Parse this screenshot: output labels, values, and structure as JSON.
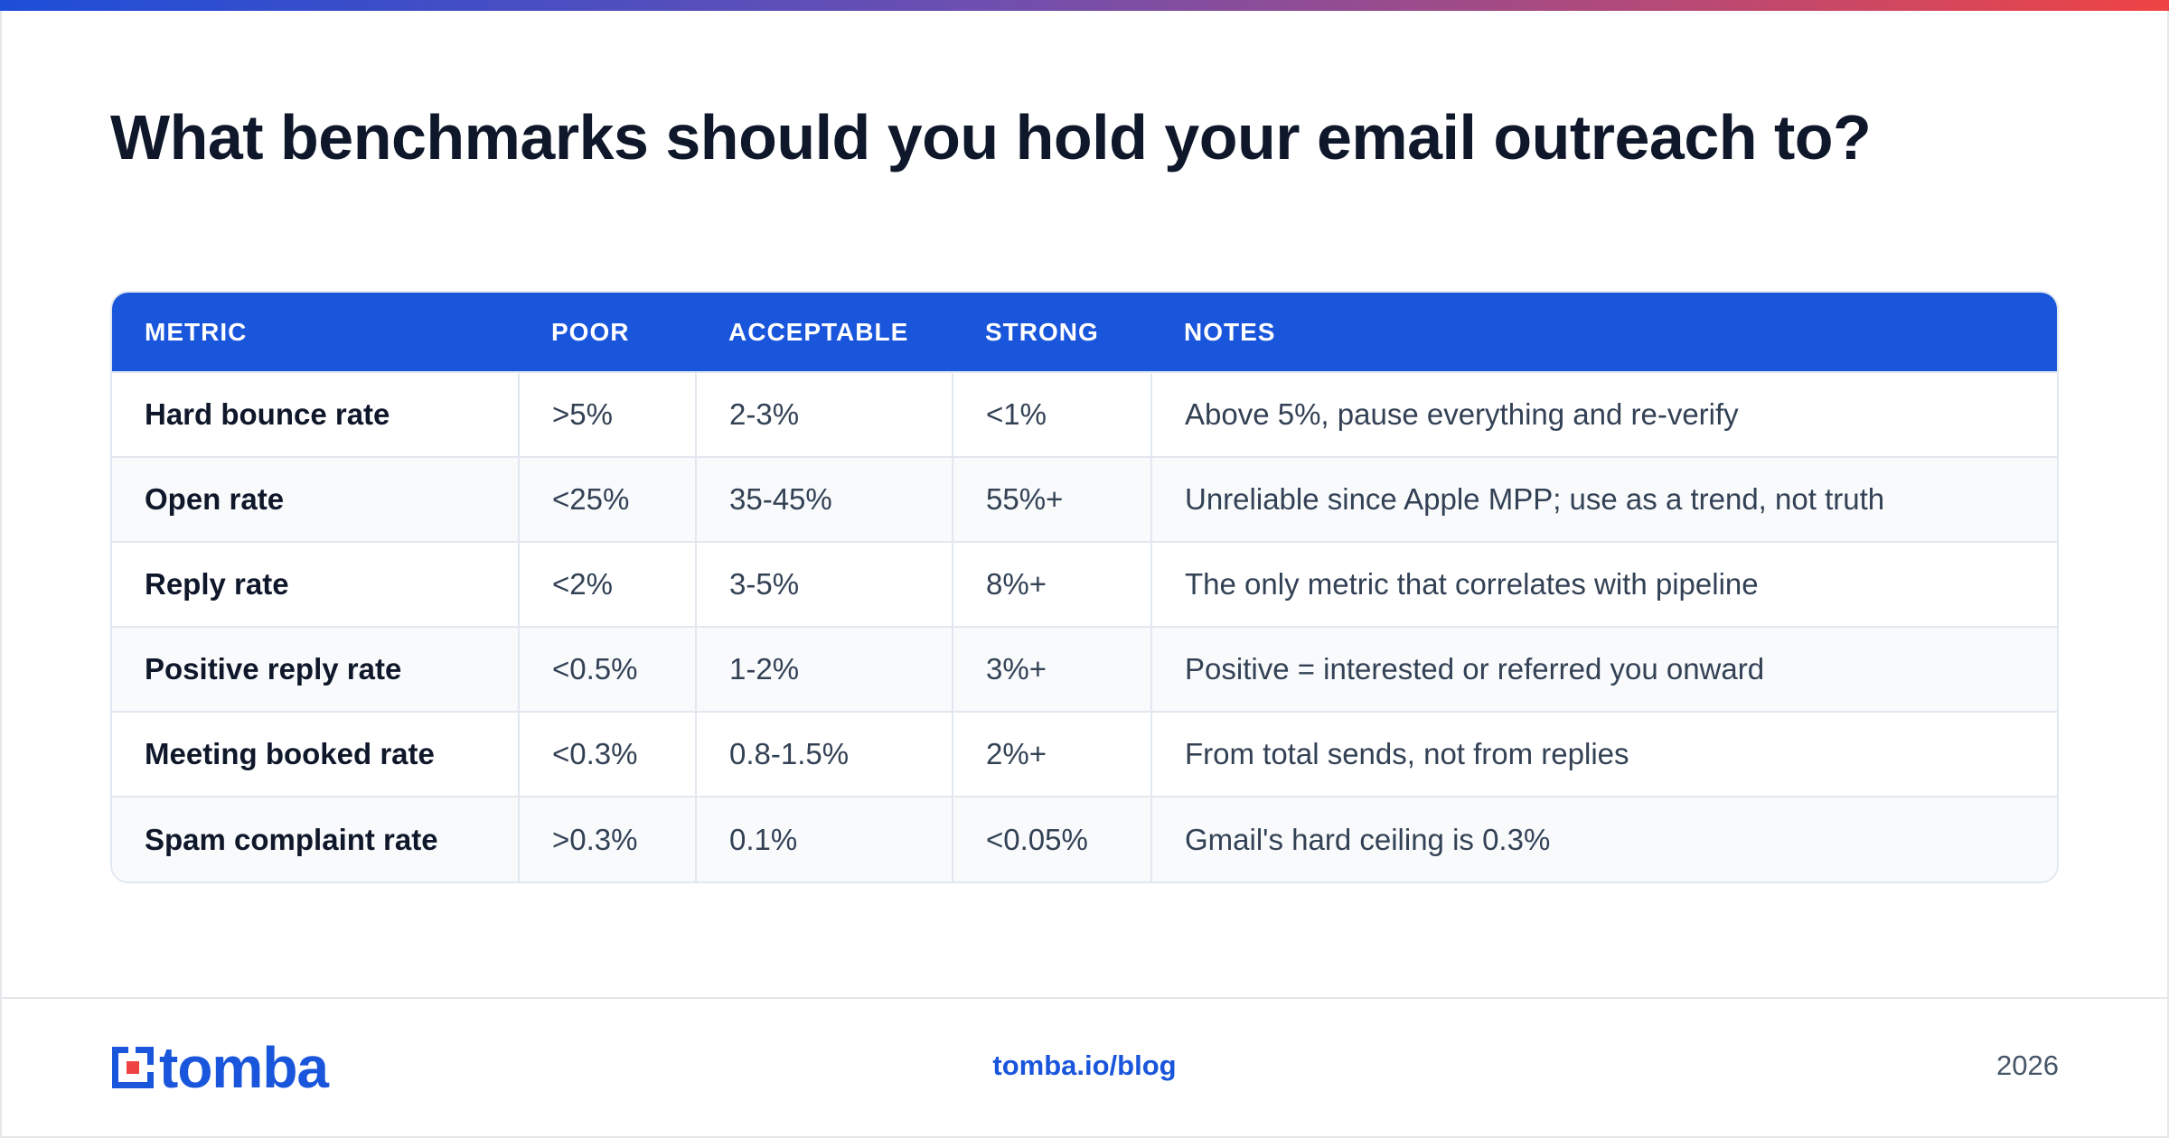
{
  "title": "What benchmarks should you hold your email outreach to?",
  "table": {
    "headers": [
      "METRIC",
      "POOR",
      "ACCEPTABLE",
      "STRONG",
      "NOTES"
    ],
    "rows": [
      [
        "Hard bounce rate",
        ">5%",
        "2-3%",
        "<1%",
        "Above 5%, pause everything and re-verify"
      ],
      [
        "Open rate",
        "<25%",
        "35-45%",
        "55%+",
        "Unreliable since Apple MPP; use as a trend, not truth"
      ],
      [
        "Reply rate",
        "<2%",
        "3-5%",
        "8%+",
        "The only metric that correlates with pipeline"
      ],
      [
        "Positive reply rate",
        "<0.5%",
        "1-2%",
        "3%+",
        "Positive = interested or referred you onward"
      ],
      [
        "Meeting booked rate",
        "<0.3%",
        "0.8-1.5%",
        "2%+",
        "From total sends, not from replies"
      ],
      [
        "Spam complaint rate",
        ">0.3%",
        "0.1%",
        "<0.05%",
        "Gmail's hard ceiling is 0.3%"
      ]
    ]
  },
  "footer": {
    "logo_text": "tomba",
    "logo_icon": "tomba-logo-icon",
    "link": "tomba.io/blog",
    "year": "2026"
  },
  "colors": {
    "header_blue": "#1a56db",
    "accent_red": "#ef4444",
    "title_dark": "#0f172a"
  }
}
